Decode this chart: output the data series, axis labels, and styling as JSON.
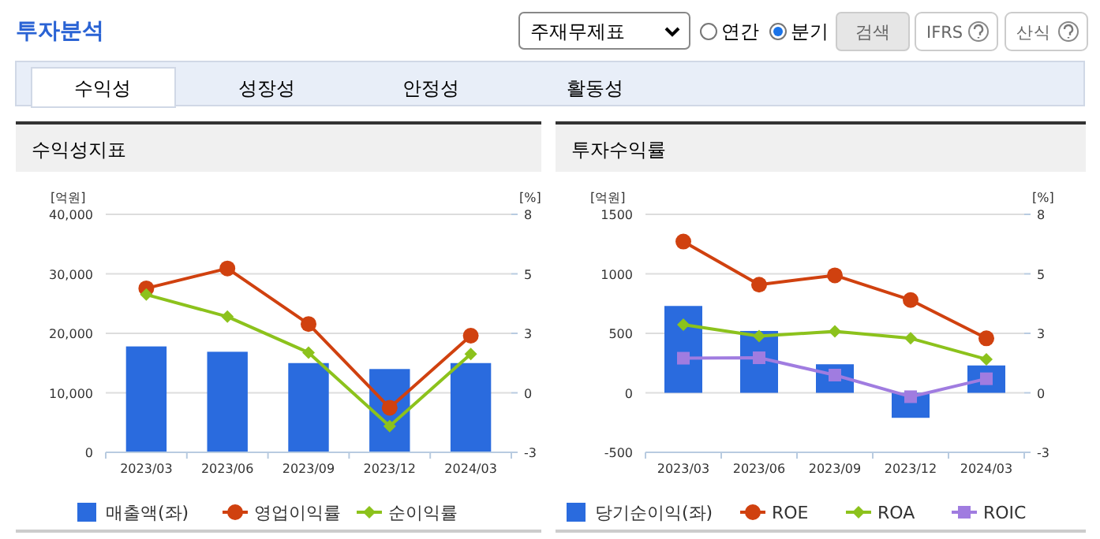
{
  "chart_data": [
    {
      "type": "other",
      "title": "투자분석",
      "annotations": [
        "주재무제표",
        "연간",
        "분기",
        "검색",
        "IFRS",
        "산식",
        "수익성",
        "성장성",
        "안정성",
        "활동성"
      ]
    },
    {
      "type": "bar",
      "title": "수익성지표",
      "ylabel": "[억원]",
      "y2label": "[%]",
      "categories": [
        "2023/03",
        "2023/06",
        "2023/09",
        "2023/12",
        "2024/03"
      ],
      "ylim": [
        0,
        40000
      ],
      "yticks": [
        0,
        {
          "value": 10000,
          "label": "10,000"
        },
        {
          "value": 20000,
          "label": "20,000"
        },
        {
          "value": 30000,
          "label": "30,000"
        },
        {
          "value": 40000,
          "label": "40,000"
        }
      ],
      "y2lim": [
        -3,
        8
      ],
      "y2ticks": [
        {
          "value": -3,
          "label": "-3"
        },
        {
          "value": -0.25,
          "label": "0"
        },
        {
          "value": 2.5,
          "label": "3"
        },
        {
          "value": 5.25,
          "label": "5"
        },
        {
          "value": 8,
          "label": "8"
        }
      ],
      "grid": "y",
      "legend": "bottom",
      "series": [
        {
          "name": "매출액(좌)",
          "type": "bar",
          "color": "#2a6bde",
          "values": [
            17800,
            16900,
            15000,
            14000,
            15000
          ]
        },
        {
          "name": "영업이익률",
          "type": "line",
          "axis": "y2",
          "marker": "circle",
          "color": "#d0410f",
          "values": [
            4.58,
            5.5,
            2.93,
            -0.94,
            2.39
          ]
        },
        {
          "name": "순이익률",
          "type": "line",
          "axis": "y2",
          "marker": "diamond",
          "color": "#8cc21c",
          "values": [
            4.29,
            3.27,
            1.61,
            -1.79,
            1.54
          ]
        }
      ]
    },
    {
      "type": "bar",
      "title": "투자수익률",
      "ylabel": "[억원]",
      "y2label": "[%]",
      "categories": [
        "2023/03",
        "2023/06",
        "2023/09",
        "2023/12",
        "2024/03"
      ],
      "ylim": [
        -500,
        1500
      ],
      "yticks": [
        -500,
        0,
        500,
        1000,
        1500
      ],
      "y2lim": [
        -3,
        8
      ],
      "y2ticks": [
        {
          "value": -3,
          "label": "-3"
        },
        {
          "value": -0.25,
          "label": "0"
        },
        {
          "value": 2.5,
          "label": "3"
        },
        {
          "value": 5.25,
          "label": "5"
        },
        {
          "value": 8,
          "label": "8"
        }
      ],
      "grid": "y",
      "legend": "bottom",
      "series": [
        {
          "name": "당기순이익(좌)",
          "type": "bar",
          "color": "#2a6bde",
          "values": [
            730,
            520,
            240,
            -210,
            230
          ]
        },
        {
          "name": "ROE",
          "type": "line",
          "axis": "y2",
          "marker": "circle",
          "color": "#d0410f",
          "values": [
            6.74,
            4.75,
            5.18,
            4.04,
            2.27
          ]
        },
        {
          "name": "ROA",
          "type": "line",
          "axis": "y2",
          "marker": "diamond",
          "color": "#8cc21c",
          "values": [
            2.9,
            2.37,
            2.59,
            2.27,
            1.3
          ]
        },
        {
          "name": "ROIC",
          "type": "line",
          "axis": "y2",
          "marker": "square",
          "color": "#a07ce0",
          "values": [
            1.35,
            1.37,
            0.57,
            -0.43,
            0.4
          ]
        }
      ]
    }
  ]
}
